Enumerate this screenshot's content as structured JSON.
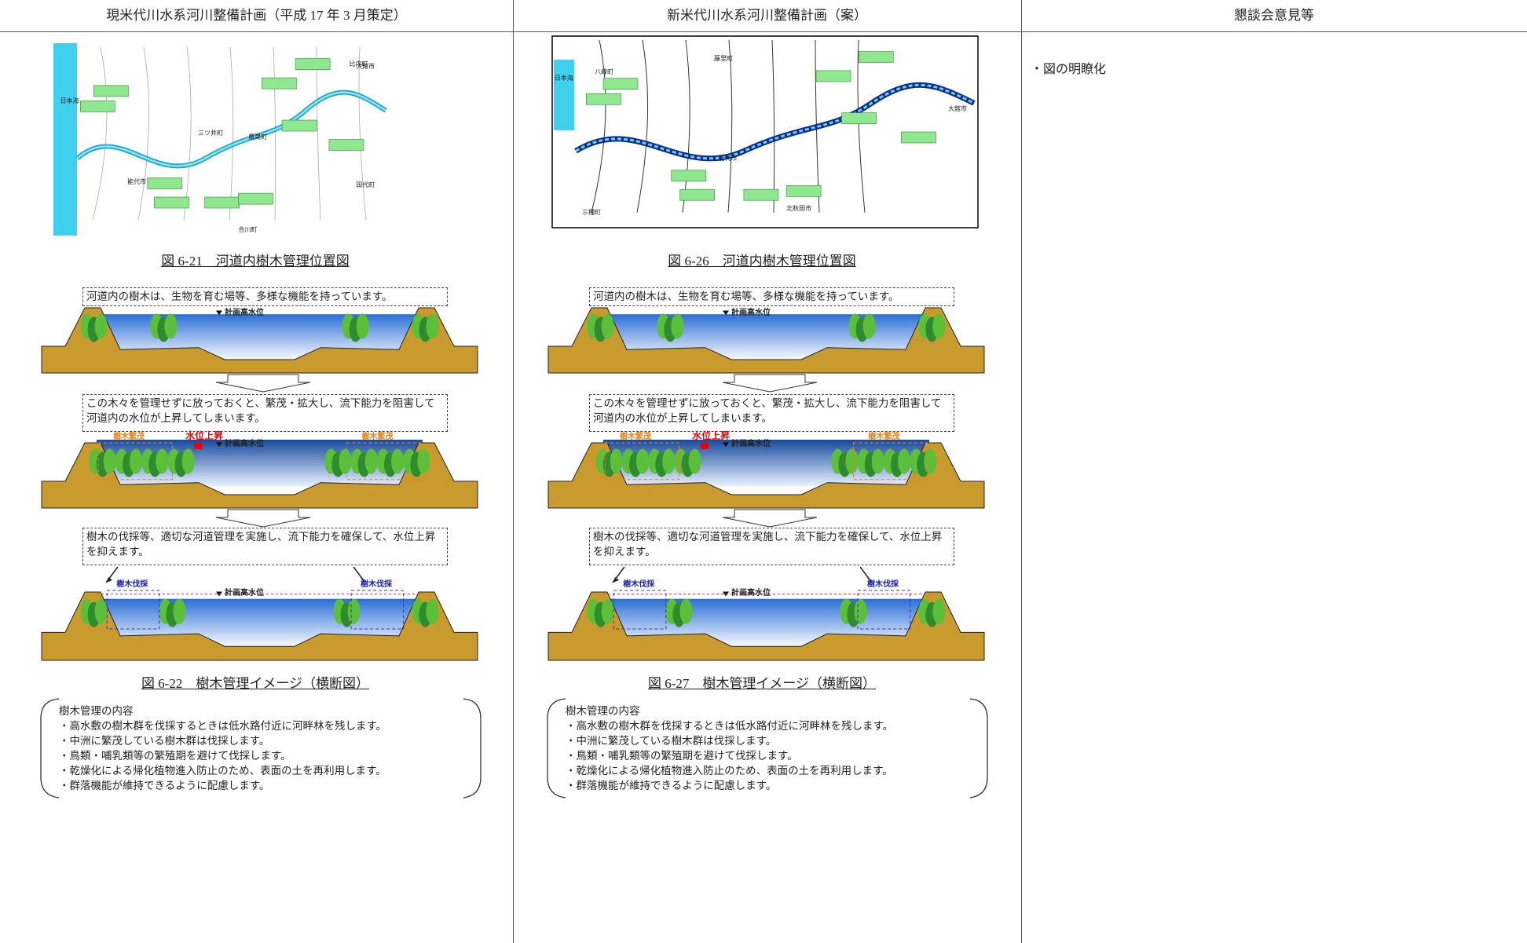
{
  "table": {
    "headers": [
      "現米代川水系河川整備計画（平成 17 年 3 月策定）",
      "新米代川水系河川整備計画（案）",
      "懇談会意見等"
    ],
    "columns": [
      {
        "map": {
          "labels": [
            "日本海",
            "能代市",
            "三ツ井町",
            "鷹巣町",
            "合川町",
            "比内町",
            "大館市",
            "田代町"
          ]
        },
        "map_caption": "図 6-21　河道内樹木管理位置図",
        "steps": [
          "河道内の樹木は、生物を育む場等、多様な機能を持っています。",
          "この木々を管理せずに放っておくと、繁茂・拡大し、流下能力を阻害して河道内の水位が上昇してしまいます。",
          "樹木の伐採等、適切な河道管理を実施し、流下能力を確保して、水位上昇を抑えます。"
        ],
        "section_labels": {
          "hwl": "計画高水位",
          "growth": "樹木繁茂",
          "rise": "水位上昇",
          "cut": "樹木伐採"
        },
        "section_caption": "図 6-22　樹木管理イメージ（横断図）",
        "box_title": "樹木管理の内容",
        "box_items": [
          "・高水敷の樹木群を伐採するときは低水路付近に河畔林を残します。",
          "・中洲に繁茂している樹木群は伐採します。",
          "・鳥類・哺乳類等の繁殖期を避けて伐採します。",
          "・乾燥化による帰化植物進入防止のため、表面の土を再利用します。",
          "・群落機能が維持できるように配慮します。"
        ]
      },
      {
        "map": {
          "labels": [
            "日本海",
            "八峰町",
            "藤里町",
            "能代市",
            "三種町",
            "北秋田市",
            "大館市"
          ]
        },
        "map_caption": "図 6-26　河道内樹木管理位置図",
        "steps": [
          "河道内の樹木は、生物を育む場等、多様な機能を持っています。",
          "この木々を管理せずに放っておくと、繁茂・拡大し、流下能力を阻害して河道内の水位が上昇してしまいます。",
          "樹木の伐採等、適切な河道管理を実施し、流下能力を確保して、水位上昇を抑えます。"
        ],
        "section_labels": {
          "hwl": "計画高水位",
          "growth": "樹木繁茂",
          "rise": "水位上昇",
          "cut": "樹木伐採"
        },
        "section_caption": "図 6-27　樹木管理イメージ（横断図）",
        "box_title": "樹木管理の内容",
        "box_items": [
          "・高水敷の樹木群を伐採するときは低水路付近に河畔林を残します。",
          "・中洲に繁茂している樹木群は伐採します。",
          "・鳥類・哺乳類等の繁殖期を避けて伐採します。",
          "・乾燥化による帰化植物進入防止のため、表面の土を再利用します。",
          "・群落機能が維持できるように配慮します。"
        ]
      }
    ],
    "comments": [
      "・図の明瞭化"
    ]
  }
}
